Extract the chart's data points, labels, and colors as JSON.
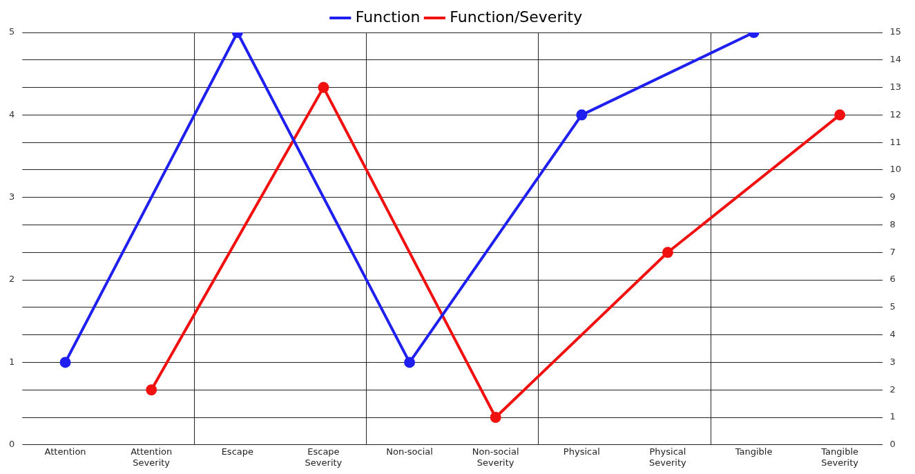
{
  "chart_data": {
    "type": "line",
    "categories": [
      "Attention",
      "Attention Severity",
      "Escape",
      "Escape Severity",
      "Non-social",
      "Non-social Severity",
      "Physical",
      "Physical Severity",
      "Tangible",
      "Tangible Severity"
    ],
    "series": [
      {
        "name": "Function",
        "color": "#1f1fef",
        "values": [
          1,
          null,
          5,
          null,
          1,
          null,
          4,
          null,
          5,
          null
        ]
      },
      {
        "name": "Function/Severity",
        "color": "#f01010",
        "axis": "y2",
        "values": [
          null,
          2,
          null,
          13,
          null,
          1,
          null,
          7,
          null,
          12
        ]
      }
    ],
    "ylim": [
      0,
      5
    ],
    "yticks": [
      0,
      1,
      2,
      3,
      4,
      5
    ],
    "y2lim": [
      0,
      15
    ],
    "y2ticks": [
      0,
      1,
      2,
      3,
      4,
      5,
      6,
      7,
      8,
      9,
      10,
      11,
      12,
      13,
      14,
      15
    ],
    "grid": true,
    "legend": "top",
    "marker": "circle",
    "line_style": "solid"
  }
}
